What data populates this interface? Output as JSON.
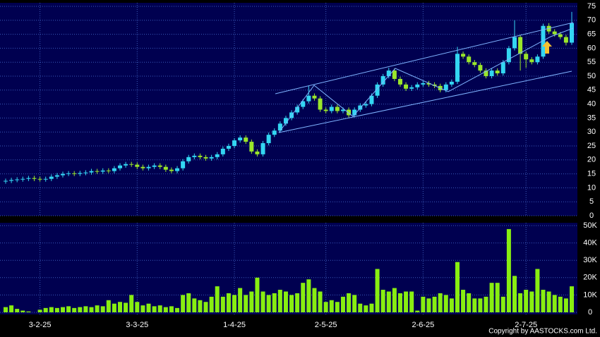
{
  "chart_data": {
    "type": "candlestick",
    "categories": [
      null,
      null,
      null,
      null,
      null,
      null,
      "3-2-25",
      null,
      null,
      null,
      null,
      null,
      null,
      null,
      null,
      null,
      null,
      null,
      null,
      null,
      null,
      null,
      null,
      "3-3-25",
      null,
      null,
      null,
      null,
      null,
      null,
      null,
      null,
      null,
      null,
      null,
      null,
      null,
      null,
      null,
      null,
      "1-4-25",
      null,
      null,
      null,
      null,
      null,
      null,
      null,
      null,
      null,
      null,
      null,
      null,
      null,
      null,
      null,
      "2-5-25",
      null,
      null,
      null,
      null,
      null,
      null,
      null,
      null,
      null,
      null,
      null,
      null,
      null,
      null,
      null,
      null,
      "2-6-25",
      null,
      null,
      null,
      null,
      null,
      null,
      null,
      null,
      null,
      null,
      null,
      null,
      null,
      null,
      null,
      null,
      null,
      "2-7-25",
      null,
      null,
      null,
      null,
      null,
      null,
      null,
      null
    ],
    "open": [
      12.3,
      12.5,
      12.8,
      13,
      13.2,
      13.5,
      13.2,
      13,
      13.2,
      14,
      14.5,
      15,
      15.2,
      15,
      15.3,
      15.5,
      16,
      15.8,
      16.2,
      16,
      17,
      18,
      18.5,
      18.3,
      17.5,
      17,
      17.5,
      18,
      17.5,
      16.5,
      16,
      17,
      19.5,
      21,
      21.5,
      21,
      20.5,
      21,
      22,
      24,
      25,
      27,
      28,
      26.5,
      23,
      22,
      26,
      29,
      30.5,
      33,
      35,
      37,
      39,
      41,
      43,
      42,
      38,
      37.5,
      39,
      37.5,
      38,
      36,
      38,
      39.5,
      40,
      43,
      47,
      50,
      52,
      49,
      47,
      45.5,
      46,
      47,
      47.5,
      47,
      46.5,
      45,
      47,
      48,
      58,
      57,
      55,
      54,
      52,
      50,
      52,
      51,
      55,
      60,
      64,
      58,
      56,
      55,
      57,
      68,
      66,
      65,
      64,
      62
    ],
    "high": [
      13.3,
      13.6,
      13.8,
      14,
      14.3,
      14.3,
      14,
      14,
      14.8,
      15.3,
      15.8,
      16,
      16,
      16.1,
      16.3,
      16.8,
      16.8,
      17,
      17,
      17.8,
      18.8,
      19.3,
      19.3,
      19.1,
      18.3,
      18.3,
      18.8,
      18.8,
      18.3,
      17.3,
      17.8,
      20.3,
      21.8,
      22.3,
      22.3,
      21.8,
      21.8,
      22.8,
      24.8,
      25.8,
      27.8,
      28.8,
      28.8,
      27.3,
      23.8,
      26.8,
      29.8,
      31.3,
      33.8,
      35.8,
      37.8,
      39.8,
      41.8,
      46.5,
      43.8,
      42.8,
      38.8,
      39.8,
      39.8,
      38.8,
      38.8,
      38.8,
      40.3,
      40.8,
      43.8,
      47.8,
      50.8,
      53,
      52.8,
      49.8,
      47.8,
      46.8,
      47.8,
      48.3,
      48.3,
      47.8,
      47.3,
      47.8,
      48.8,
      60.5,
      58.8,
      57.8,
      55.8,
      54.8,
      52.8,
      52.8,
      52.8,
      55.8,
      60.8,
      70,
      64.8,
      58.8,
      56.8,
      57.8,
      68.8,
      69,
      66.8,
      65.8,
      64.8,
      73
    ],
    "low": [
      11.5,
      11.7,
      12,
      12.2,
      12.4,
      12.4,
      12.2,
      12.2,
      12.4,
      13.2,
      13.7,
      14.2,
      14.2,
      14.2,
      14.5,
      14.7,
      15,
      15,
      15.2,
      15.2,
      16.2,
      17.2,
      17.5,
      16.7,
      16.2,
      16.2,
      16.7,
      16.7,
      15.7,
      15.2,
      15.2,
      16.2,
      18.7,
      20.2,
      20.2,
      19.7,
      19.7,
      20.2,
      21.2,
      23.2,
      24.2,
      26.2,
      25.7,
      22.2,
      21.2,
      21.2,
      25.2,
      28.2,
      29.7,
      32.2,
      34.2,
      36.2,
      38.2,
      40.2,
      41.2,
      37.2,
      36.7,
      36.7,
      36.7,
      36.7,
      35.2,
      35.2,
      37.2,
      38.7,
      39.2,
      42.2,
      46.2,
      49.2,
      48.2,
      46.2,
      44.7,
      44.7,
      45.2,
      46.2,
      46.2,
      45.7,
      44.2,
      44.2,
      46.2,
      47.2,
      56.2,
      54.2,
      53.2,
      51.2,
      49.2,
      49.2,
      50.2,
      50.2,
      54.2,
      59.2,
      52,
      53,
      54.2,
      54.2,
      56.2,
      65.2,
      64.2,
      63.2,
      61,
      61.2
    ],
    "close": [
      12.5,
      12.8,
      13,
      13.2,
      13.5,
      13.2,
      13,
      13.2,
      14,
      14.5,
      15,
      15.2,
      15,
      15.3,
      15.5,
      16,
      15.8,
      16.2,
      16,
      17,
      18,
      18.5,
      18.3,
      17.5,
      17,
      17.5,
      18,
      17.5,
      16.5,
      16,
      17,
      19.5,
      21,
      21.5,
      21,
      20.5,
      21,
      22,
      24,
      25,
      27,
      28,
      26.5,
      23,
      22,
      26,
      29,
      30.5,
      33,
      35,
      37,
      39,
      41,
      43,
      42,
      38,
      37.5,
      39,
      37.5,
      38,
      36,
      38,
      39.5,
      40,
      43,
      47,
      50,
      52,
      49,
      47,
      45.5,
      46,
      47,
      47.5,
      47,
      46.5,
      45,
      47,
      48,
      58,
      57,
      55,
      54,
      52,
      50,
      52,
      51,
      55,
      60,
      64,
      58,
      56,
      55,
      57,
      68,
      66,
      65,
      64,
      62,
      69
    ],
    "volume": [
      3000,
      4000,
      2000,
      1000,
      500,
      0,
      1500,
      2500,
      3000,
      2500,
      3000,
      3500,
      2500,
      3000,
      3500,
      3000,
      4000,
      3500,
      7000,
      5000,
      6000,
      5500,
      10000,
      6000,
      4000,
      5000,
      3500,
      4000,
      3000,
      3500,
      2500,
      10000,
      11000,
      8000,
      7000,
      6000,
      9000,
      15000,
      9000,
      11000,
      10000,
      14000,
      10000,
      12000,
      20000,
      12000,
      10000,
      11000,
      13000,
      12000,
      10000,
      11000,
      17000,
      19000,
      14000,
      12000,
      6000,
      7000,
      6000,
      9000,
      11000,
      10000,
      5000,
      4000,
      5000,
      25000,
      13000,
      12000,
      14000,
      11000,
      12000,
      12000,
      1000,
      9000,
      8000,
      9000,
      11000,
      10000,
      8000,
      29000,
      13000,
      11000,
      8000,
      8000,
      9000,
      17000,
      17000,
      9000,
      48000,
      21000,
      11000,
      13000,
      12000,
      25000,
      13000,
      12000,
      10000,
      9000,
      8000,
      15000
    ],
    "up_color": "#33d6f2",
    "down_color": "#9ae62a",
    "volume_color": "#88ee11",
    "ylim": [
      0,
      75
    ],
    "yticks": [
      0,
      5,
      10,
      15,
      20,
      25,
      30,
      35,
      40,
      45,
      50,
      55,
      60,
      65,
      70,
      75
    ],
    "volume_ylim": [
      0,
      50000
    ],
    "volume_yticks": [
      0,
      {
        "value": 10000,
        "label": "10K"
      },
      {
        "value": 20000,
        "label": "20K"
      },
      {
        "value": 30000,
        "label": "30K"
      },
      {
        "value": 40000,
        "label": "40K"
      },
      {
        "value": 50000,
        "label": "50K"
      }
    ],
    "grid": true,
    "copyright": "Copyright by AASTOCKS.com Ltd."
  }
}
